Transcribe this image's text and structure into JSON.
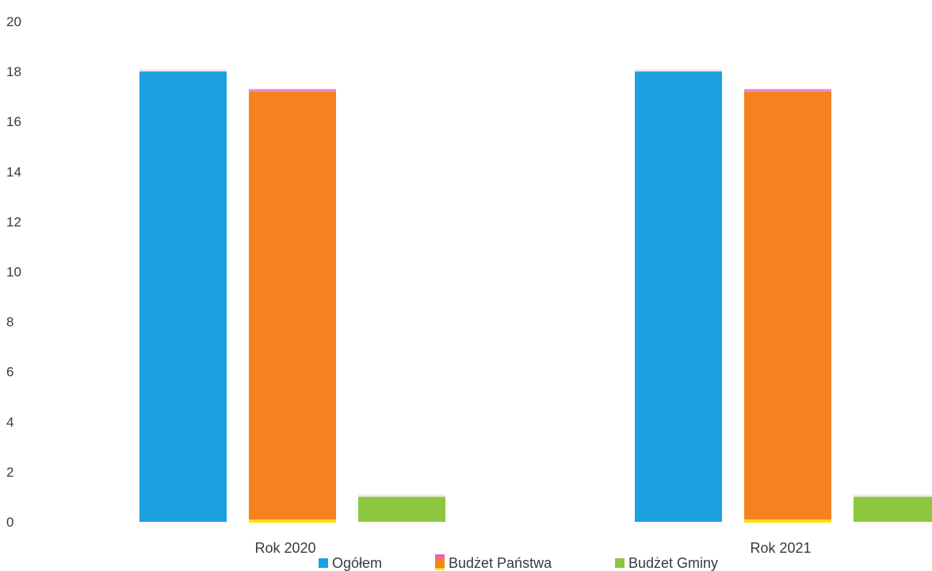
{
  "chart_data": {
    "type": "bar",
    "categories": [
      "Rok 2020",
      "Rok 2021"
    ],
    "series": [
      {
        "name": "Ogółem",
        "values": [
          18.0,
          18.0
        ],
        "color": "#1ba1e2"
      },
      {
        "name": "Budżet Państwa",
        "values": [
          17.2,
          17.2
        ],
        "color": "#f5821f"
      },
      {
        "name": "Budżet Gminy",
        "values": [
          1.0,
          1.0
        ],
        "color": "#8cc63f"
      }
    ],
    "ylim": [
      0,
      20
    ],
    "yticks": [
      0,
      2,
      4,
      6,
      8,
      10,
      12,
      14,
      16,
      18,
      20
    ],
    "grid": false,
    "legend": "bottom",
    "legend_items": [
      {
        "label": "Ogółem",
        "color": "#1ba1e2",
        "icon": "blue-square-icon"
      },
      {
        "label": "Budżet Państwa",
        "color": "#f5821f",
        "icon": "orange-square-icon"
      },
      {
        "label": "Budżet Gminy",
        "color": "#8cc63f",
        "icon": "green-square-icon"
      }
    ]
  }
}
